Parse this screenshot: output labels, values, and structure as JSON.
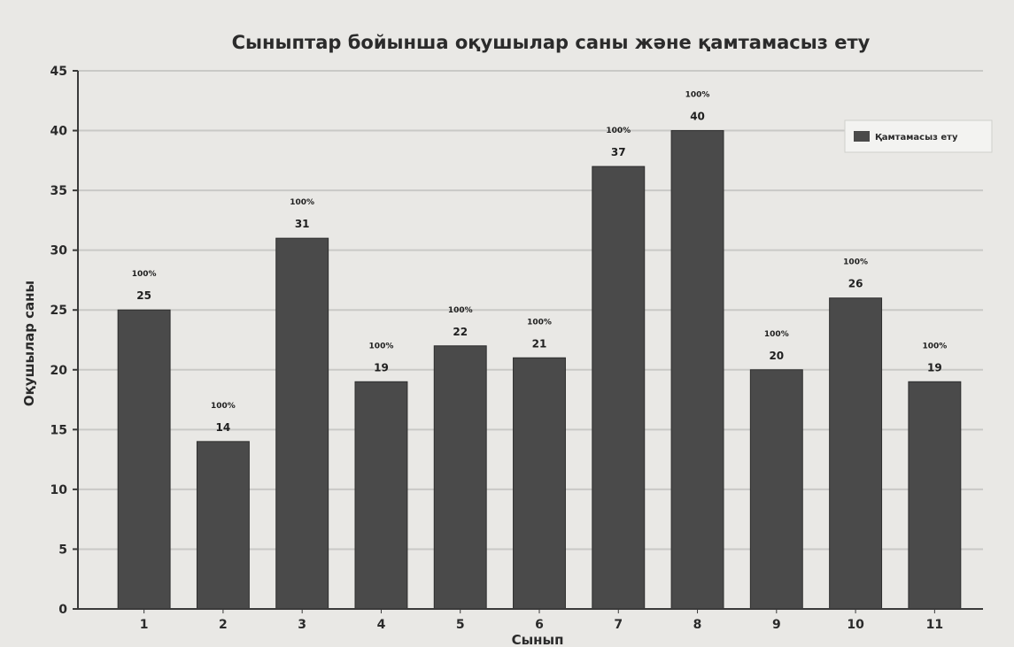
{
  "chart_data": {
    "type": "bar",
    "title": "Сыныптар бойынша оқушылар саны және қамтамасыз ету",
    "xlabel": "Сынып",
    "ylabel": "Оқушылар саны",
    "categories": [
      "1",
      "2",
      "3",
      "4",
      "5",
      "6",
      "7",
      "8",
      "9",
      "10",
      "11"
    ],
    "series": [
      {
        "name": "Қамтамасыз ету",
        "values": [
          25,
          14,
          31,
          19,
          22,
          21,
          37,
          40,
          20,
          26,
          19
        ],
        "percent_labels": [
          "100%",
          "100%",
          "100%",
          "100%",
          "100%",
          "100%",
          "100%",
          "100%",
          "100%",
          "100%",
          "100%"
        ],
        "color": "#4a4a4a"
      }
    ],
    "ylim": [
      0,
      45
    ],
    "yticks": [
      "0",
      "5",
      "10",
      "15",
      "20",
      "25",
      "30",
      "35",
      "40",
      "45"
    ],
    "grid": true,
    "legend_position": "top-right"
  }
}
